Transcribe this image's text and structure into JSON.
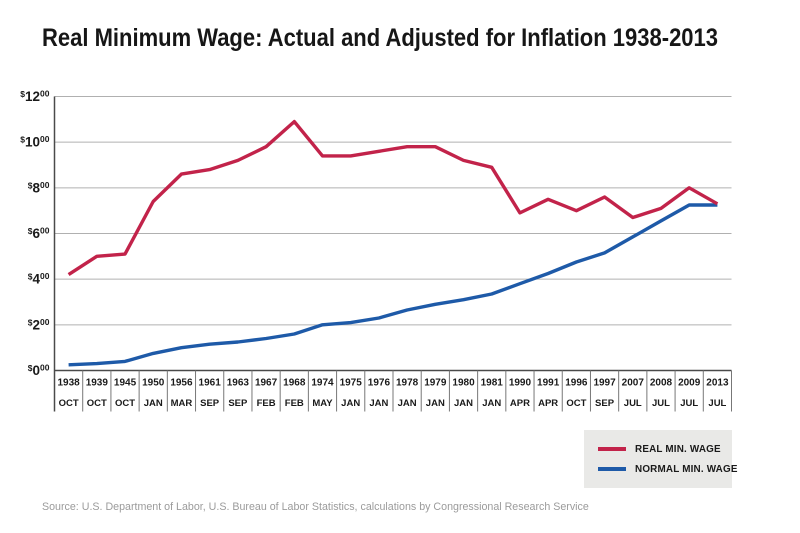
{
  "title": "Real Minimum Wage: Actual and Adjusted for Inflation 1938-2013",
  "source_note": "Source: U.S. Department of Labor, U.S. Bureau of Labor Statistics, calculations by Congressional Research Service",
  "legend": {
    "items": [
      {
        "label": "REAL MIN. WAGE",
        "color": "#c2234a"
      },
      {
        "label": "NORMAL MIN. WAGE",
        "color": "#1e5aa8"
      }
    ]
  },
  "colors": {
    "real_line": "#c2234a",
    "nominal_line": "#1e5aa8",
    "gridline": "#b0b0b0",
    "axis": "#4a4a4a",
    "table_divider": "#777777",
    "tick_text": "#1a1a1a",
    "legend_bg": "#e9e9e7",
    "source_text": "#9b9b9b"
  },
  "chart_data": {
    "type": "line",
    "title": "Real Minimum Wage: Actual and Adjusted for Inflation 1938-2013",
    "categories": [
      "1938 OCT",
      "1939 OCT",
      "1945 OCT",
      "1950 JAN",
      "1956 MAR",
      "1961 SEP",
      "1963 SEP",
      "1967 FEB",
      "1968 FEB",
      "1974 MAY",
      "1975 JAN",
      "1976 JAN",
      "1978 JAN",
      "1979 JAN",
      "1980 JAN",
      "1981 JAN",
      "1990 APR",
      "1991 APR",
      "1996 OCT",
      "1997 SEP",
      "2007 JUL",
      "2008 JUL",
      "2009 JUL",
      "2013 JUL"
    ],
    "x_years": [
      "1938",
      "1939",
      "1945",
      "1950",
      "1956",
      "1961",
      "1963",
      "1967",
      "1968",
      "1974",
      "1975",
      "1976",
      "1978",
      "1979",
      "1980",
      "1981",
      "1990",
      "1991",
      "1996",
      "1997",
      "2007",
      "2008",
      "2009",
      "2013"
    ],
    "x_months": [
      "OCT",
      "OCT",
      "OCT",
      "JAN",
      "MAR",
      "SEP",
      "SEP",
      "FEB",
      "FEB",
      "MAY",
      "JAN",
      "JAN",
      "JAN",
      "JAN",
      "JAN",
      "JAN",
      "APR",
      "APR",
      "OCT",
      "SEP",
      "JUL",
      "JUL",
      "JUL",
      "JUL"
    ],
    "series": [
      {
        "name": "REAL MIN. WAGE",
        "color": "#c2234a",
        "values": [
          4.2,
          5.0,
          5.1,
          7.4,
          8.6,
          8.8,
          9.2,
          9.8,
          10.9,
          9.4,
          9.4,
          9.6,
          9.8,
          9.8,
          9.2,
          8.9,
          6.9,
          7.5,
          7.0,
          7.6,
          6.7,
          7.1,
          8.0,
          7.3
        ]
      },
      {
        "name": "NORMAL MIN. WAGE",
        "color": "#1e5aa8",
        "values": [
          0.25,
          0.3,
          0.4,
          0.75,
          1.0,
          1.15,
          1.25,
          1.4,
          1.6,
          2.0,
          2.1,
          2.3,
          2.65,
          2.9,
          3.1,
          3.35,
          3.8,
          4.25,
          4.75,
          5.15,
          5.85,
          6.55,
          7.25,
          7.25
        ]
      }
    ],
    "ylim": [
      0,
      12
    ],
    "yticks": [
      0,
      2,
      4,
      6,
      8,
      10,
      12
    ],
    "ytick_dollar_sign": "$",
    "ytick_cents_superscript": "00",
    "grid": "horizontal",
    "legend_position": "bottom-right"
  }
}
